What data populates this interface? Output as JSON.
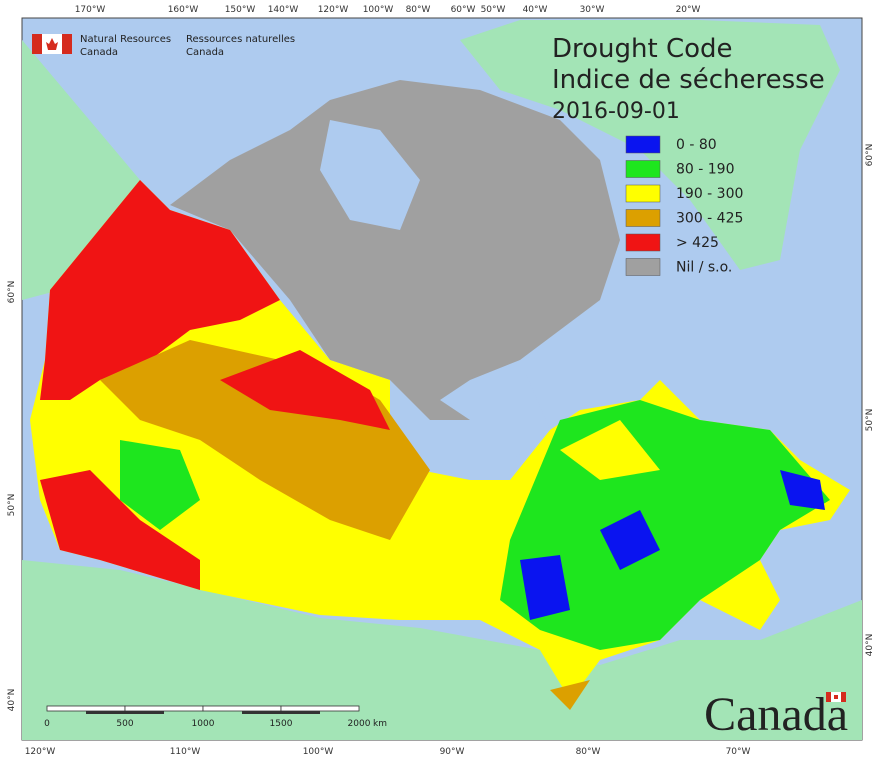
{
  "header": {
    "department_en": [
      "Natural Resources",
      "Canada"
    ],
    "department_fr": [
      "Ressources naturelles",
      "Canada"
    ]
  },
  "title": {
    "line1": "Drought Code",
    "line2": "Indice de sécheresse",
    "date": "2016-09-01"
  },
  "legend": [
    {
      "label": "0 - 80",
      "color": "#0a14f0"
    },
    {
      "label": "80 - 190",
      "color": "#1ee61e"
    },
    {
      "label": "190 - 300",
      "color": "#ffff00"
    },
    {
      "label": "300 - 425",
      "color": "#dca000"
    },
    {
      "label": "> 425",
      "color": "#f01414"
    },
    {
      "label": "Nil / s.o.",
      "color": "#a0a0a0"
    }
  ],
  "graticule": {
    "top": [
      "170°W",
      "160°W",
      "150°W",
      "140°W",
      "120°W",
      "100°W",
      "80°W",
      "60°W",
      "50°W",
      "40°W",
      "30°W",
      "20°W"
    ],
    "bottom": [
      "120°W",
      "110°W",
      "100°W",
      "90°W",
      "80°W",
      "70°W"
    ],
    "left": [
      "60°N",
      "50°N",
      "40°N"
    ],
    "right": [
      "60°N",
      "50°N",
      "40°N"
    ]
  },
  "scale_bar": {
    "labels": [
      "0",
      "500",
      "1000",
      "1500",
      "2000"
    ],
    "unit": "km"
  },
  "wordmark": "Canada"
}
